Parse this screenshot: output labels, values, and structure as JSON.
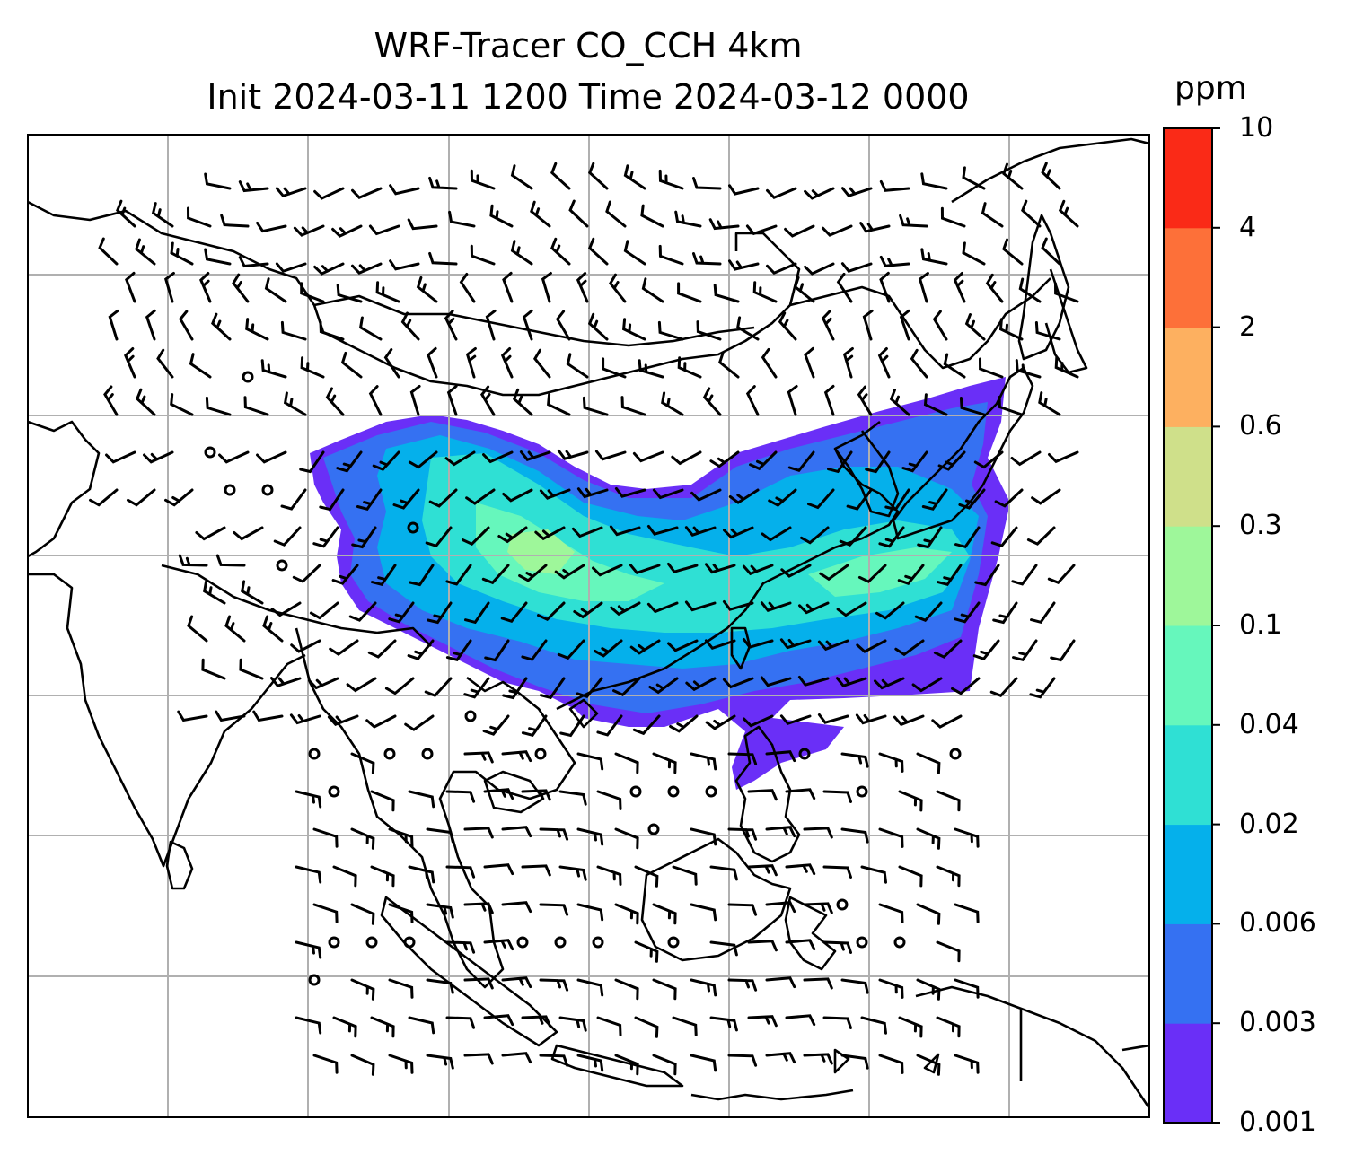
{
  "title": "WRF-Tracer CO_CCH 4km",
  "subtitle": "Init 2024-03-11 1200 Time 2024-03-12 0000",
  "colorbar": {
    "unit": "ppm",
    "ticks": [
      "0.001",
      "0.003",
      "0.006",
      "0.02",
      "0.04",
      "0.1",
      "0.3",
      "0.6",
      "2",
      "4",
      "10"
    ],
    "colors": [
      "#6a2ff7",
      "#3571f2",
      "#05b0eb",
      "#2fe0d4",
      "#66f7bc",
      "#9ef79a",
      "#cfe08a",
      "#fdb060",
      "#fd7039",
      "#fa2a17"
    ]
  },
  "map": {
    "colors": {
      "coast": "#000000",
      "grid": "#b0b0b0",
      "barb": "#000000"
    },
    "grid_cols": 8,
    "grid_rows": 7
  }
}
